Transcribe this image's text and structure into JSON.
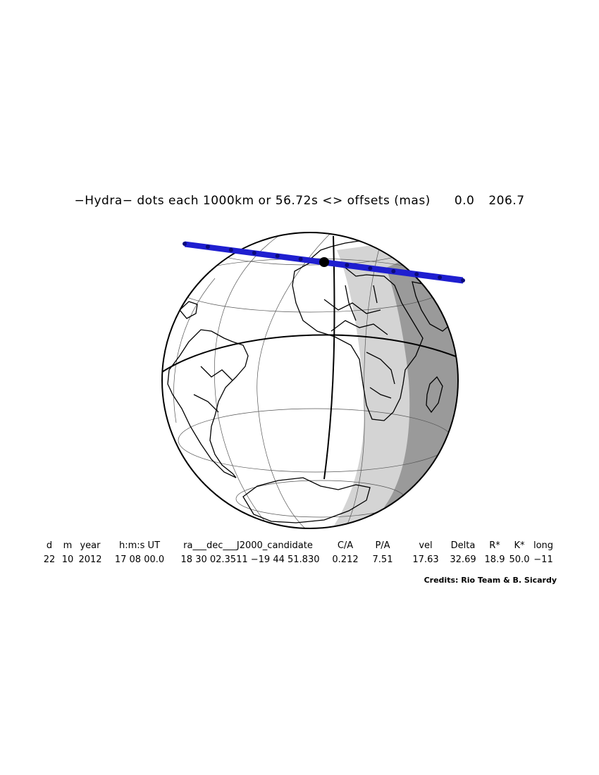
{
  "title": {
    "label": "−Hydra− dots each 1000km or 56.72s <> offsets (mas)",
    "offset_ra": "0.0",
    "offset_dec": "206.7"
  },
  "table": {
    "headers": [
      "d",
      "m",
      "year",
      "h:m:s UT",
      "ra___dec___J2000_candidate",
      "C/A",
      "P/A",
      "vel",
      "Delta",
      "R*",
      "K*",
      "long"
    ],
    "values": [
      "22",
      "10",
      "2012",
      "17 08 00.0",
      "18 30 02.3511 −19 44 51.830",
      "0.212",
      "7.51",
      "17.63",
      "32.69",
      "18.9",
      "50.0",
      "−11"
    ]
  },
  "credits": "Credits: Rio Team & B. Sicardy",
  "colors": {
    "track": "#1f1fd0",
    "track_dots": "#0a0a7a",
    "twilight": "#d4d4d4",
    "night": "#9a9a9a",
    "coast": "#000000"
  }
}
